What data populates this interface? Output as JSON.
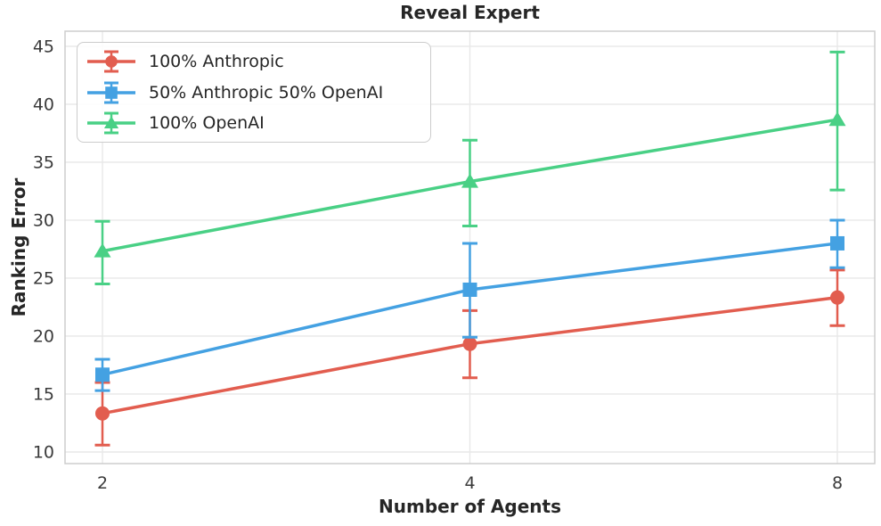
{
  "title": "Reveal Expert",
  "chart_data": {
    "type": "line",
    "title": "Reveal Expert",
    "xlabel": "Number of Agents",
    "ylabel": "Ranking Error",
    "x": [
      2,
      4,
      8
    ],
    "x_scale": "log2",
    "x_tick_labels": [
      "2",
      "4",
      "8"
    ],
    "y_ticks": [
      10,
      15,
      20,
      25,
      30,
      35,
      40,
      45
    ],
    "ylim": [
      9.0,
      46.3
    ],
    "grid": true,
    "legend_position": "upper-left",
    "series": [
      {
        "name": "100% Anthropic",
        "marker": "circle",
        "color": "#e25d4f",
        "values": [
          13.33,
          19.33,
          23.33
        ],
        "err_low": [
          10.6,
          16.4,
          20.9
        ],
        "err_high": [
          16.0,
          22.2,
          25.7
        ]
      },
      {
        "name": "50% Anthropic 50% OpenAI",
        "marker": "square",
        "color": "#44a1e2",
        "values": [
          16.67,
          24.0,
          28.0
        ],
        "err_low": [
          15.3,
          19.9,
          25.9
        ],
        "err_high": [
          18.0,
          28.0,
          30.0
        ]
      },
      {
        "name": "100% OpenAI",
        "marker": "triangle",
        "color": "#49d085",
        "values": [
          27.33,
          33.33,
          38.67
        ],
        "err_low": [
          24.5,
          29.5,
          32.6
        ],
        "err_high": [
          29.9,
          36.9,
          44.5
        ]
      }
    ],
    "style": {
      "background": "#ffffff",
      "grid_color": "#e8e8e8",
      "spine_color": "#cdcdcd",
      "tick_label_color": "#3a3a3a",
      "text_color": "#262626",
      "legend_border_color": "#cccccc"
    }
  }
}
